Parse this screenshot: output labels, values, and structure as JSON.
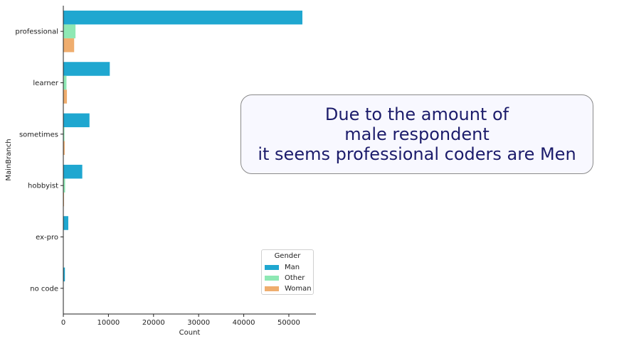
{
  "chart_data": {
    "type": "bar",
    "orientation": "horizontal",
    "categories": [
      "professional",
      "learner",
      "sometimes",
      "hobbyist",
      "ex-pro",
      "no code"
    ],
    "series": [
      {
        "name": "Man",
        "color": "#1fa7d0",
        "values": [
          53000,
          10300,
          5800,
          4200,
          1100,
          350
        ]
      },
      {
        "name": "Other",
        "color": "#8ee8b4",
        "values": [
          2700,
          700,
          250,
          400,
          60,
          20
        ]
      },
      {
        "name": "Woman",
        "color": "#efad6e",
        "values": [
          2400,
          800,
          300,
          150,
          40,
          15
        ]
      }
    ],
    "xlabel": "Count",
    "ylabel": "MainBranch",
    "xlim": [
      0,
      56000
    ],
    "xticks": [
      0,
      10000,
      20000,
      30000,
      40000,
      50000
    ],
    "grid": false,
    "legend": {
      "title": "Gender",
      "placement": "lower-right"
    },
    "annotation": {
      "lines": [
        "Due to the amount of",
        "male respondent",
        "it seems professional coders are Men"
      ],
      "text_color": "#1c1c6b",
      "background": "#f8f8ff"
    }
  }
}
